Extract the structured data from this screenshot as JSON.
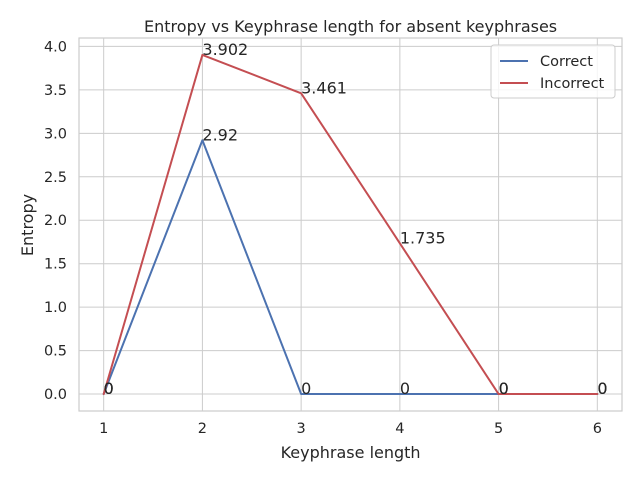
{
  "chart_data": {
    "type": "line",
    "title": "Entropy vs Keyphrase length for absent keyphrases",
    "xlabel": "Keyphrase length",
    "ylabel": "Entropy",
    "x": [
      1,
      2,
      3,
      4,
      5,
      6
    ],
    "xlim": [
      0.75,
      6.25
    ],
    "ylim": [
      -0.195,
      4.097
    ],
    "xticks": [
      "1",
      "2",
      "3",
      "4",
      "5",
      "6"
    ],
    "yticks": [
      "0.0",
      "0.5",
      "1.0",
      "1.5",
      "2.0",
      "2.5",
      "3.0",
      "3.5",
      "4.0"
    ],
    "grid": true,
    "legend_position": "upper right",
    "series": [
      {
        "name": "Correct",
        "color": "#4c72b0",
        "values": [
          0,
          2.92,
          0,
          0,
          0,
          0
        ],
        "labels": [
          "0",
          "2.92",
          "0",
          "0",
          "0",
          "0"
        ]
      },
      {
        "name": "Incorrect",
        "color": "#c44e52",
        "values": [
          0,
          3.902,
          3.461,
          1.735,
          0,
          0
        ],
        "labels": [
          "0",
          "3.902",
          "3.461",
          "1.735",
          "0",
          "0"
        ]
      }
    ]
  }
}
